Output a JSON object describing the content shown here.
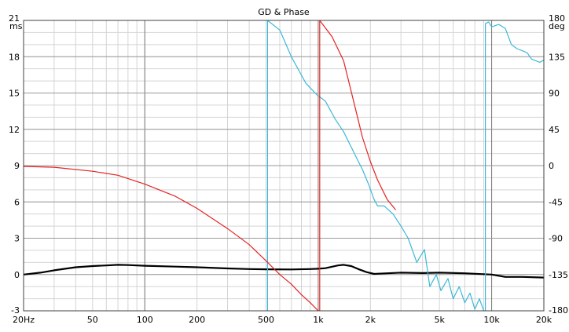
{
  "chart_data": {
    "type": "line",
    "title": "GD & Phase",
    "x_axis": {
      "scale": "log",
      "range": [
        20,
        20000
      ],
      "unit_label": "Hz",
      "ticks": [
        {
          "v": 20,
          "label": "20Hz"
        },
        {
          "v": 50,
          "label": "50"
        },
        {
          "v": 100,
          "label": "100"
        },
        {
          "v": 200,
          "label": "200"
        },
        {
          "v": 500,
          "label": "500"
        },
        {
          "v": 1000,
          "label": "1k"
        },
        {
          "v": 2000,
          "label": "2k"
        },
        {
          "v": 5000,
          "label": "5k"
        },
        {
          "v": 10000,
          "label": "10k"
        },
        {
          "v": 20000,
          "label": "20k"
        }
      ]
    },
    "y_left": {
      "unit": "ms",
      "range": [
        -3,
        21
      ],
      "ticks": [
        {
          "v": 21,
          "label": "21"
        },
        {
          "v": 18,
          "label": "18"
        },
        {
          "v": 15,
          "label": "15"
        },
        {
          "v": 12,
          "label": "12"
        },
        {
          "v": 9,
          "label": "9"
        },
        {
          "v": 6,
          "label": "6"
        },
        {
          "v": 3,
          "label": "3"
        },
        {
          "v": 0,
          "label": "0"
        },
        {
          "v": -3,
          "label": "-3"
        }
      ]
    },
    "y_right": {
      "unit": "deg",
      "range": [
        -180,
        180
      ],
      "ticks": [
        {
          "v": 180,
          "label": "180"
        },
        {
          "v": 135,
          "label": "135"
        },
        {
          "v": 90,
          "label": "90"
        },
        {
          "v": 45,
          "label": "45"
        },
        {
          "v": 0,
          "label": "0"
        },
        {
          "v": -45,
          "label": "-45"
        },
        {
          "v": -90,
          "label": "-90"
        },
        {
          "v": -135,
          "label": "-135"
        },
        {
          "v": -180,
          "label": "-180"
        }
      ]
    },
    "series": [
      {
        "id": "group-delay",
        "axis": "left",
        "color": "#000000",
        "points": [
          [
            20,
            0.0
          ],
          [
            25,
            0.15
          ],
          [
            30,
            0.35
          ],
          [
            40,
            0.6
          ],
          [
            50,
            0.7
          ],
          [
            60,
            0.75
          ],
          [
            70,
            0.8
          ],
          [
            80,
            0.78
          ],
          [
            100,
            0.72
          ],
          [
            150,
            0.65
          ],
          [
            200,
            0.6
          ],
          [
            300,
            0.5
          ],
          [
            400,
            0.45
          ],
          [
            500,
            0.43
          ],
          [
            700,
            0.42
          ],
          [
            900,
            0.45
          ],
          [
            1000,
            0.48
          ],
          [
            1100,
            0.52
          ],
          [
            1300,
            0.75
          ],
          [
            1400,
            0.8
          ],
          [
            1550,
            0.7
          ],
          [
            1700,
            0.45
          ],
          [
            1900,
            0.2
          ],
          [
            2100,
            0.05
          ],
          [
            2500,
            0.1
          ],
          [
            3000,
            0.15
          ],
          [
            4000,
            0.12
          ],
          [
            5000,
            0.15
          ],
          [
            7000,
            0.1
          ],
          [
            10000,
            0.0
          ],
          [
            12000,
            -0.2
          ],
          [
            15000,
            -0.2
          ],
          [
            20000,
            -0.25
          ]
        ]
      },
      {
        "id": "phase-cyan",
        "axis": "right",
        "color": "#3ab8d8",
        "points": [
          [
            510,
            -180
          ],
          [
            510,
            180
          ],
          [
            600,
            168
          ],
          [
            700,
            135
          ],
          [
            850,
            102
          ],
          [
            980,
            88
          ],
          [
            1100,
            80
          ],
          [
            1250,
            58
          ],
          [
            1400,
            42
          ],
          [
            1600,
            17
          ],
          [
            1800,
            -5
          ],
          [
            1950,
            -23
          ],
          [
            2100,
            -42
          ],
          [
            2200,
            -50
          ],
          [
            2400,
            -50
          ],
          [
            2700,
            -60
          ],
          [
            3000,
            -75
          ],
          [
            3300,
            -90
          ],
          [
            3700,
            -120
          ],
          [
            4100,
            -104
          ],
          [
            4400,
            -150
          ],
          [
            4800,
            -135
          ],
          [
            5100,
            -155
          ],
          [
            5600,
            -140
          ],
          [
            6000,
            -165
          ],
          [
            6500,
            -150
          ],
          [
            7000,
            -170
          ],
          [
            7500,
            -158
          ],
          [
            8000,
            -178
          ],
          [
            8500,
            -165
          ],
          [
            9000,
            -180
          ],
          [
            9200,
            -180
          ],
          [
            9200,
            176
          ],
          [
            9600,
            178
          ],
          [
            10000,
            172
          ],
          [
            11000,
            175
          ],
          [
            12000,
            170
          ],
          [
            13000,
            150
          ],
          [
            14000,
            145
          ],
          [
            16000,
            140
          ],
          [
            17000,
            132
          ],
          [
            18000,
            130
          ],
          [
            19000,
            128
          ],
          [
            20000,
            131
          ]
        ]
      },
      {
        "id": "phase-red",
        "axis": "right",
        "color": "#e52222",
        "points": [
          [
            20,
            -1
          ],
          [
            30,
            -2
          ],
          [
            50,
            -7
          ],
          [
            70,
            -12
          ],
          [
            100,
            -23
          ],
          [
            150,
            -38
          ],
          [
            200,
            -53
          ],
          [
            300,
            -78
          ],
          [
            400,
            -98
          ],
          [
            500,
            -118
          ],
          [
            600,
            -135
          ],
          [
            700,
            -147
          ],
          [
            800,
            -160
          ],
          [
            900,
            -170
          ],
          [
            1000,
            -180
          ],
          [
            1020,
            -180
          ],
          [
            1020,
            180
          ],
          [
            1200,
            160
          ],
          [
            1400,
            130
          ],
          [
            1600,
            80
          ],
          [
            1800,
            35
          ],
          [
            2000,
            5
          ],
          [
            2200,
            -18
          ],
          [
            2500,
            -42
          ],
          [
            2800,
            -55
          ]
        ]
      }
    ]
  }
}
